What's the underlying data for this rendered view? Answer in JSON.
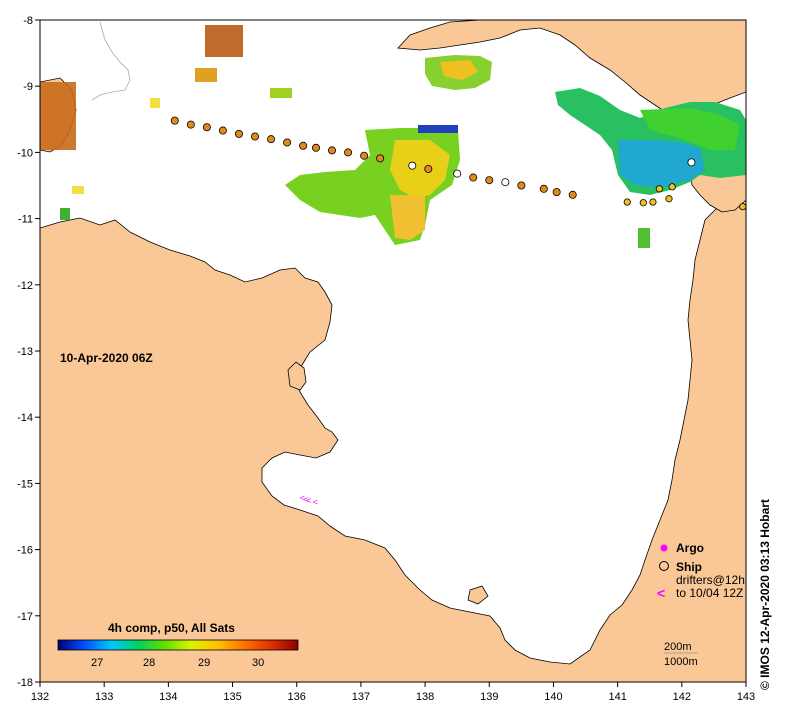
{
  "map": {
    "timestamp": "10-Apr-2020 06Z",
    "x_ticks": [
      "132",
      "133",
      "134",
      "135",
      "136",
      "137",
      "138",
      "139",
      "140",
      "141",
      "142",
      "143"
    ],
    "y_ticks": [
      "-8",
      "-9",
      "-10",
      "-11",
      "-12",
      "-13",
      "-14",
      "-15",
      "-16",
      "-17",
      "-18"
    ],
    "lon_range": [
      132,
      143
    ],
    "lat_range": [
      -18,
      -8
    ],
    "colorbar": {
      "title": "4h comp, p50, All Sats",
      "labels": [
        "27",
        "28",
        "29",
        "30"
      ],
      "colors": [
        "#00007a",
        "#0050ff",
        "#00c8ff",
        "#00d060",
        "#60e000",
        "#e0f000",
        "#ffc000",
        "#ff7000",
        "#e03000",
        "#8a0000"
      ]
    },
    "legend": {
      "argo": "Argo",
      "ship": "Ship",
      "drifters_line1": "drifters@12h",
      "drifters_line2": "to 10/04 12Z",
      "drifter_symbol": "<"
    },
    "depth": {
      "line1": "200m",
      "line2": "1000m"
    },
    "credit": "© IMOS 12-Apr-2020 03:13 Hobart",
    "land_color": "#fac896",
    "track_orange": [
      [
        134.1,
        -9.52
      ],
      [
        134.35,
        -9.58
      ],
      [
        134.6,
        -9.62
      ],
      [
        134.85,
        -9.67
      ],
      [
        135.1,
        -9.72
      ],
      [
        135.35,
        -9.76
      ],
      [
        135.6,
        -9.8
      ],
      [
        135.85,
        -9.85
      ],
      [
        136.1,
        -9.9
      ],
      [
        136.3,
        -9.93
      ],
      [
        136.55,
        -9.97
      ],
      [
        136.8,
        -10.0
      ],
      [
        137.05,
        -10.05
      ],
      [
        137.3,
        -10.09
      ],
      [
        138.05,
        -10.25
      ],
      [
        138.75,
        -10.38
      ],
      [
        139.0,
        -10.42
      ],
      [
        139.5,
        -10.5
      ],
      [
        139.85,
        -10.55
      ],
      [
        140.05,
        -10.6
      ],
      [
        140.3,
        -10.64
      ]
    ],
    "track_ship": [
      [
        137.8,
        -10.2
      ],
      [
        138.5,
        -10.32
      ],
      [
        139.25,
        -10.45
      ]
    ],
    "track_yellow": [
      [
        141.15,
        -10.75
      ],
      [
        141.4,
        -10.76
      ],
      [
        141.55,
        -10.75
      ],
      [
        141.8,
        -10.7
      ],
      [
        141.65,
        -10.55
      ],
      [
        141.85,
        -10.52
      ],
      [
        142.95,
        -10.82
      ]
    ],
    "track_ship_right": [
      [
        142.15,
        -10.15
      ]
    ],
    "drifter_arrows": [
      [
        136.05,
        -15.22
      ],
      [
        136.1,
        -15.24
      ],
      [
        136.15,
        -15.26
      ],
      [
        136.25,
        -15.28
      ]
    ]
  }
}
